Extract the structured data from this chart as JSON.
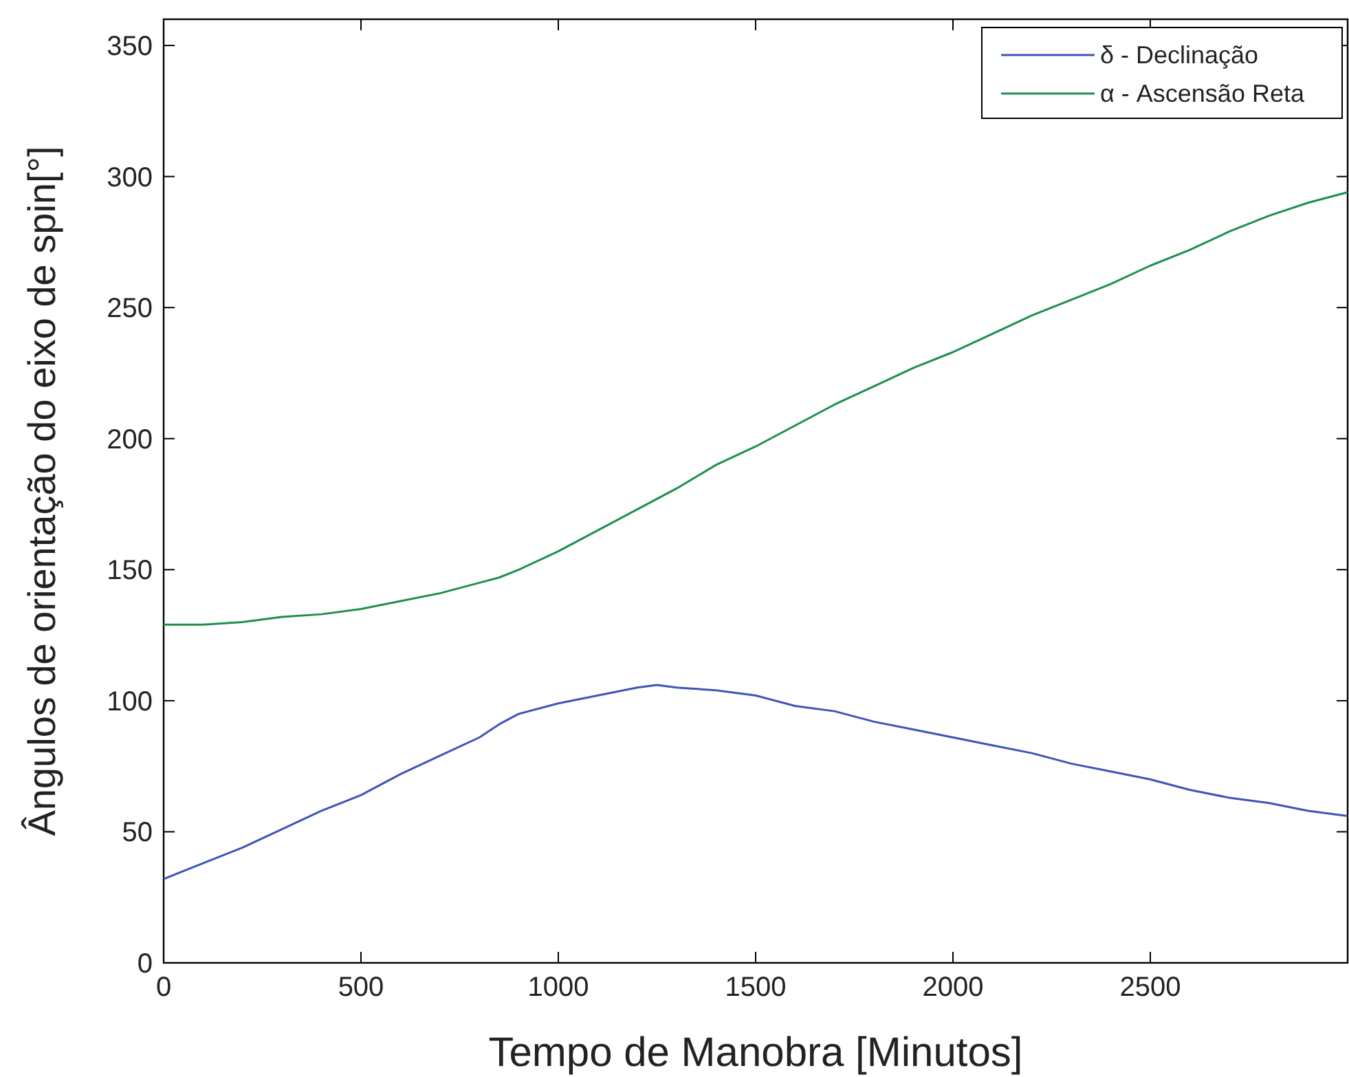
{
  "chart_data": {
    "type": "line",
    "xlabel": "Tempo de Manobra [Minutos]",
    "ylabel": "Ângulos de orientação do eixo de spin[°]",
    "x": [
      0,
      100,
      200,
      300,
      400,
      500,
      600,
      700,
      800,
      850,
      900,
      1000,
      1100,
      1200,
      1250,
      1300,
      1400,
      1500,
      1600,
      1700,
      1800,
      1900,
      2000,
      2100,
      2200,
      2300,
      2400,
      2500,
      2600,
      2700,
      2800,
      2900,
      3000
    ],
    "series": [
      {
        "name": "δ - Declinação",
        "color": "#3e55b8",
        "values": [
          32,
          38,
          44,
          51,
          58,
          64,
          72,
          79,
          86,
          91,
          95,
          99,
          102,
          105,
          106,
          105,
          104,
          102,
          98,
          96,
          92,
          89,
          86,
          83,
          80,
          76,
          73,
          70,
          66,
          63,
          61,
          58,
          56
        ]
      },
      {
        "name": "α - Ascensão Reta",
        "color": "#1e8f4e",
        "values": [
          129,
          129,
          130,
          132,
          133,
          135,
          138,
          141,
          145,
          147,
          150,
          157,
          165,
          173,
          177,
          181,
          190,
          197,
          205,
          213,
          220,
          227,
          233,
          240,
          247,
          253,
          259,
          266,
          272,
          279,
          285,
          290,
          294
        ]
      }
    ],
    "xlim": [
      0,
      3000
    ],
    "xticks": [
      0,
      500,
      1000,
      1500,
      2000,
      2500
    ],
    "ylim": [
      0,
      360
    ],
    "yticks": [
      0,
      50,
      100,
      150,
      200,
      250,
      300,
      350
    ],
    "legend": "top right",
    "line_style": "solid"
  }
}
